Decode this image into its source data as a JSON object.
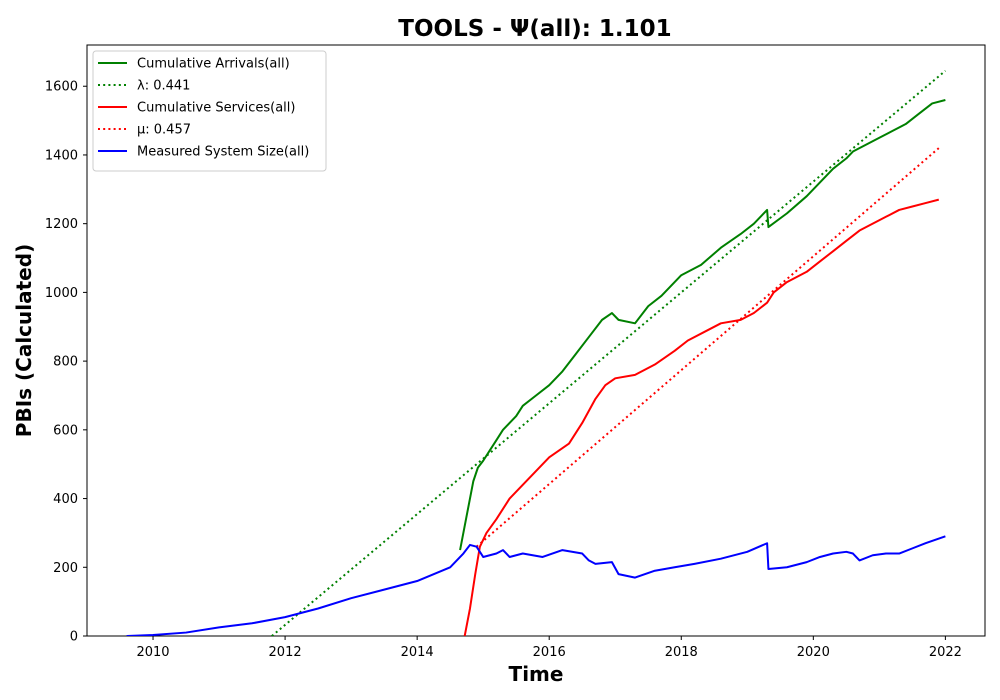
{
  "chart_data": {
    "type": "line",
    "title": "TOOLS -  Ψ(all): 1.101",
    "xlabel": "Time",
    "ylabel": "PBIs (Calculated)",
    "xlim": [
      2009.0,
      2022.6
    ],
    "ylim": [
      0,
      1720
    ],
    "xticks": [
      2010,
      2012,
      2014,
      2016,
      2018,
      2020,
      2022
    ],
    "xtick_labels": [
      "2010",
      "2012",
      "2014",
      "2016",
      "2018",
      "2020",
      "2022"
    ],
    "yticks": [
      0,
      200,
      400,
      600,
      800,
      1000,
      1200,
      1400,
      1600
    ],
    "ytick_labels": [
      "0",
      "200",
      "400",
      "600",
      "800",
      "1000",
      "1200",
      "1400",
      "1600"
    ],
    "grid": false,
    "legend_position": "top-left",
    "series": [
      {
        "name": "Cumulative Arrivals(all)",
        "color": "#008000",
        "style": "solid",
        "x": [
          2014.65,
          2014.75,
          2014.85,
          2014.92,
          2015.0,
          2015.1,
          2015.2,
          2015.3,
          2015.4,
          2015.5,
          2015.6,
          2015.8,
          2016.0,
          2016.2,
          2016.4,
          2016.6,
          2016.8,
          2016.95,
          2017.05,
          2017.3,
          2017.5,
          2017.7,
          2017.9,
          2018.0,
          2018.3,
          2018.6,
          2018.9,
          2019.1,
          2019.3,
          2019.32,
          2019.6,
          2019.9,
          2020.1,
          2020.3,
          2020.5,
          2020.6,
          2020.8,
          2021.0,
          2021.2,
          2021.4,
          2021.6,
          2021.8,
          2022.0
        ],
        "values": [
          250,
          350,
          450,
          490,
          510,
          540,
          570,
          600,
          620,
          640,
          670,
          700,
          730,
          770,
          820,
          870,
          920,
          940,
          920,
          910,
          960,
          990,
          1030,
          1050,
          1080,
          1130,
          1170,
          1200,
          1240,
          1190,
          1230,
          1280,
          1320,
          1360,
          1390,
          1410,
          1430,
          1450,
          1470,
          1490,
          1520,
          1550,
          1560
        ]
      },
      {
        "name": "λ: 0.441",
        "color": "#008000",
        "style": "dotted",
        "x": [
          2011.8,
          2022.0
        ],
        "values": [
          0,
          1645
        ]
      },
      {
        "name": "Cumulative Services(all)",
        "color": "#ff0000",
        "style": "solid",
        "x": [
          2014.72,
          2014.8,
          2014.88,
          2014.95,
          2015.05,
          2015.2,
          2015.4,
          2015.6,
          2015.8,
          2016.0,
          2016.3,
          2016.5,
          2016.7,
          2016.85,
          2017.0,
          2017.3,
          2017.6,
          2017.9,
          2018.1,
          2018.4,
          2018.6,
          2018.9,
          2019.1,
          2019.3,
          2019.4,
          2019.6,
          2019.9,
          2020.1,
          2020.3,
          2020.5,
          2020.7,
          2020.9,
          2021.1,
          2021.3,
          2021.5,
          2021.7,
          2021.9
        ],
        "values": [
          0,
          80,
          180,
          260,
          300,
          340,
          400,
          440,
          480,
          520,
          560,
          620,
          690,
          730,
          750,
          760,
          790,
          830,
          860,
          890,
          910,
          920,
          940,
          970,
          1000,
          1030,
          1060,
          1090,
          1120,
          1150,
          1180,
          1200,
          1220,
          1240,
          1250,
          1260,
          1270
        ]
      },
      {
        "name": "μ: 0.457",
        "color": "#ff0000",
        "style": "dotted",
        "x": [
          2014.9,
          2021.9
        ],
        "values": [
          260,
          1420
        ]
      },
      {
        "name": "Measured System Size(all)",
        "color": "#0000ff",
        "style": "solid",
        "x": [
          2009.6,
          2010.0,
          2010.5,
          2011.0,
          2011.5,
          2012.0,
          2012.5,
          2013.0,
          2013.5,
          2014.0,
          2014.5,
          2014.7,
          2014.8,
          2014.9,
          2015.0,
          2015.2,
          2015.3,
          2015.4,
          2015.6,
          2015.9,
          2016.2,
          2016.5,
          2016.6,
          2016.7,
          2016.95,
          2017.05,
          2017.3,
          2017.6,
          2017.9,
          2018.2,
          2018.6,
          2019.0,
          2019.3,
          2019.32,
          2019.6,
          2019.9,
          2020.1,
          2020.3,
          2020.5,
          2020.6,
          2020.7,
          2020.9,
          2021.1,
          2021.3,
          2021.5,
          2021.7,
          2022.0
        ],
        "values": [
          0,
          3,
          10,
          25,
          37,
          55,
          80,
          110,
          135,
          160,
          200,
          240,
          265,
          260,
          230,
          240,
          250,
          230,
          240,
          230,
          250,
          240,
          220,
          210,
          215,
          180,
          170,
          190,
          200,
          210,
          225,
          245,
          270,
          195,
          200,
          215,
          230,
          240,
          245,
          240,
          220,
          235,
          240,
          240,
          255,
          270,
          290
        ]
      }
    ]
  }
}
